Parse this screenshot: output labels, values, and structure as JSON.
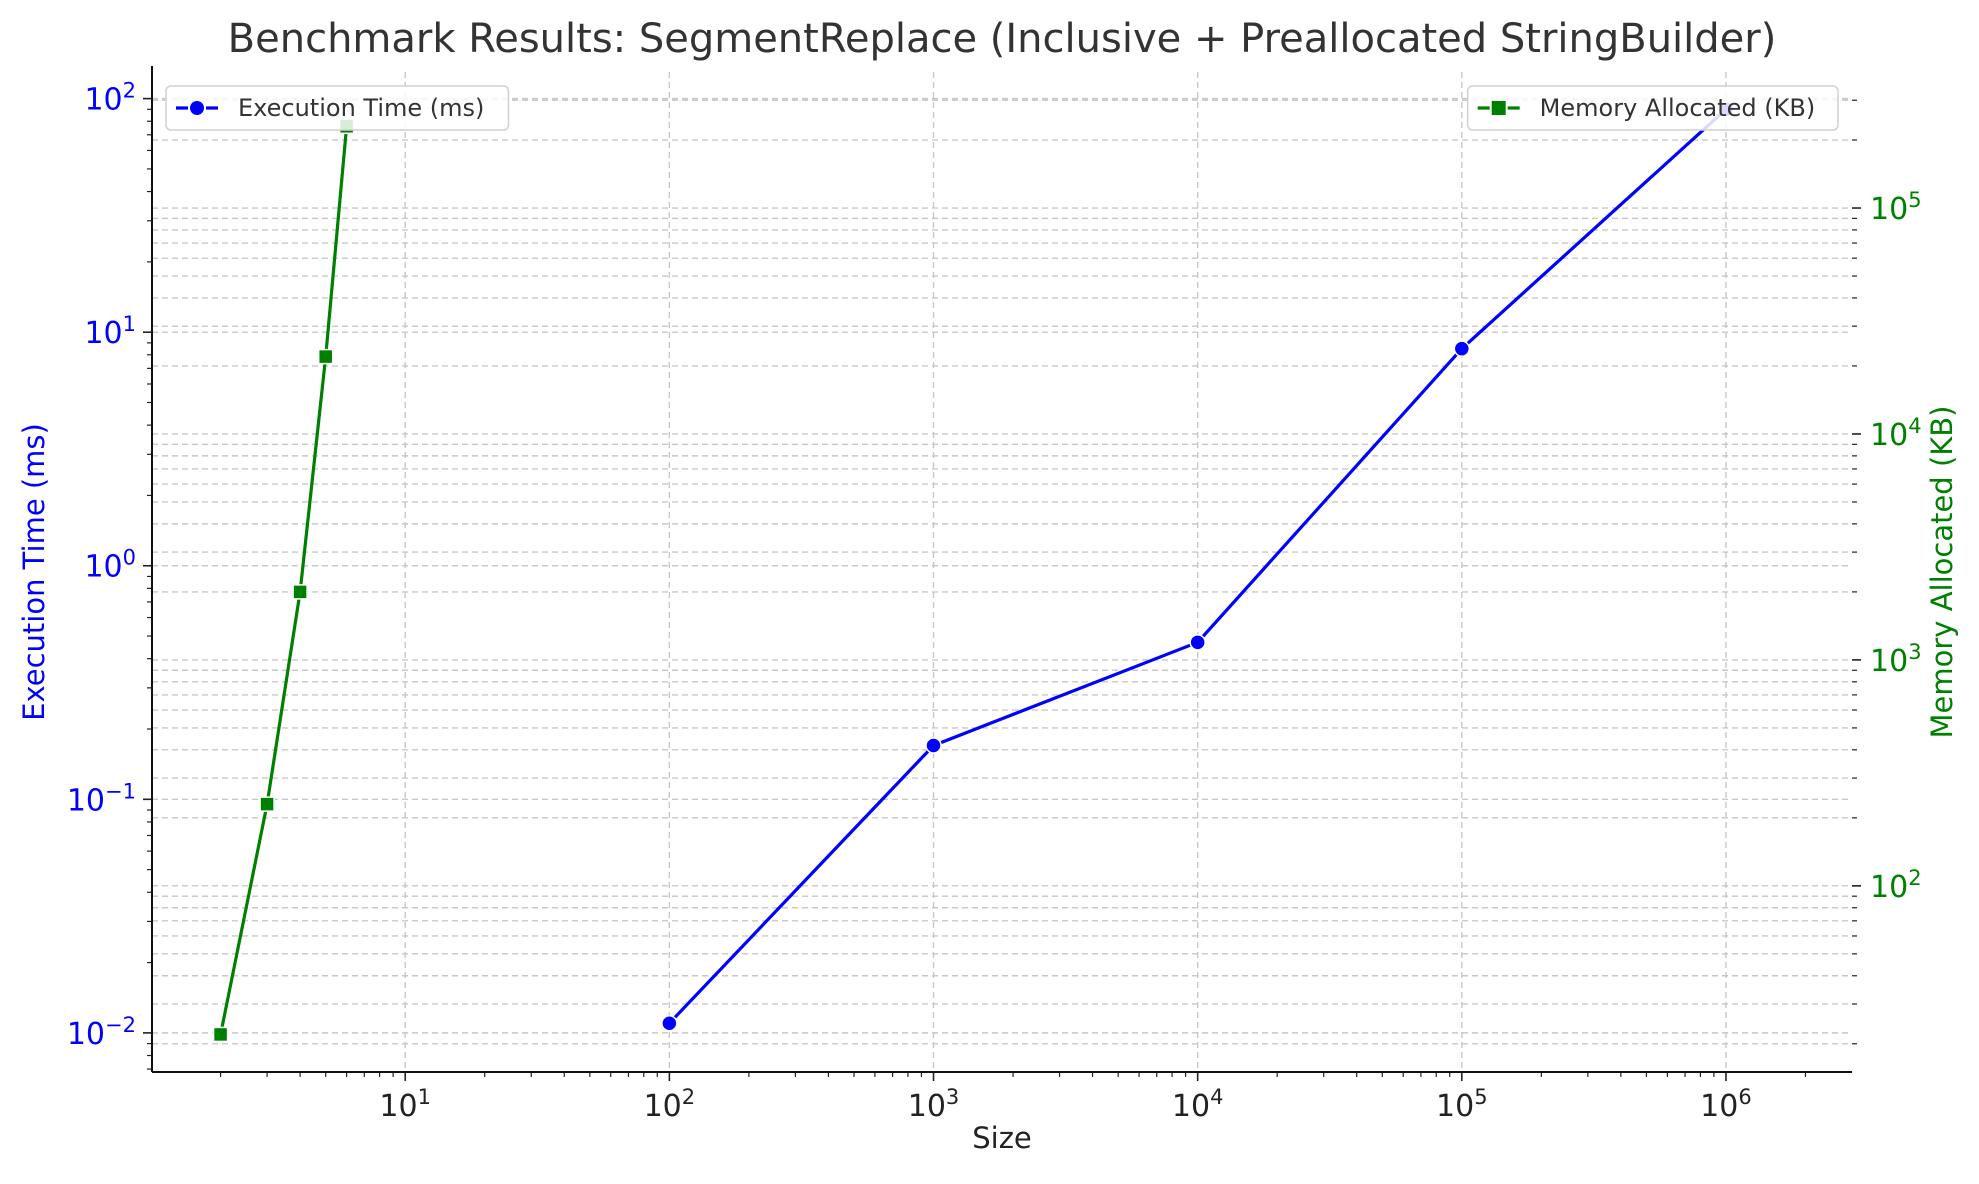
{
  "chart_data": {
    "type": "line",
    "title": "Benchmark Results: SegmentReplace (Inclusive + Preallocated StringBuilder)",
    "xlabel": "Size",
    "ylabel_left": "Execution Time (ms)",
    "ylabel_right": "Memory Allocated (KB)",
    "x_scale": "log",
    "y_scale_left": "log",
    "y_scale_right": "log",
    "xlim": [
      1.1,
      3000000
    ],
    "ylim_left": [
      0.0068,
      130
    ],
    "ylim_right": [
      15,
      400000
    ],
    "x_ticks": [
      {
        "value": 10,
        "base": "10",
        "exp": "1"
      },
      {
        "value": 100,
        "base": "10",
        "exp": "2"
      },
      {
        "value": 1000,
        "base": "10",
        "exp": "3"
      },
      {
        "value": 10000,
        "base": "10",
        "exp": "4"
      },
      {
        "value": 100000,
        "base": "10",
        "exp": "5"
      },
      {
        "value": 1000000,
        "base": "10",
        "exp": "6"
      }
    ],
    "y_ticks_left": [
      {
        "value": 0.01,
        "base": "10",
        "exp": "−2"
      },
      {
        "value": 0.1,
        "base": "10",
        "exp": "−1"
      },
      {
        "value": 1,
        "base": "10",
        "exp": "0"
      },
      {
        "value": 10,
        "base": "10",
        "exp": "1"
      },
      {
        "value": 100,
        "base": "10",
        "exp": "2"
      }
    ],
    "y_ticks_right": [
      {
        "value": 100,
        "base": "10",
        "exp": "2"
      },
      {
        "value": 1000,
        "base": "10",
        "exp": "3"
      },
      {
        "value": 10000,
        "base": "10",
        "exp": "4"
      },
      {
        "value": 100000,
        "base": "10",
        "exp": "5"
      }
    ],
    "grid": true,
    "series": [
      {
        "name": "Execution Time (ms)",
        "axis": "left",
        "color": "#0000ff",
        "marker": "circle",
        "x": [
          100,
          1000,
          10000,
          100000,
          1000000
        ],
        "y": [
          0.011,
          0.17,
          0.47,
          8.5,
          90
        ]
      },
      {
        "name": "Memory Allocated (KB)",
        "axis": "right",
        "color": "#008000",
        "marker": "square",
        "x": [
          2,
          3,
          4,
          5,
          6
        ],
        "y": [
          22,
          230,
          2000,
          22000,
          230000
        ]
      }
    ],
    "legends": [
      {
        "series": 0,
        "placement": "top-left"
      },
      {
        "series": 1,
        "placement": "top-right"
      }
    ]
  }
}
